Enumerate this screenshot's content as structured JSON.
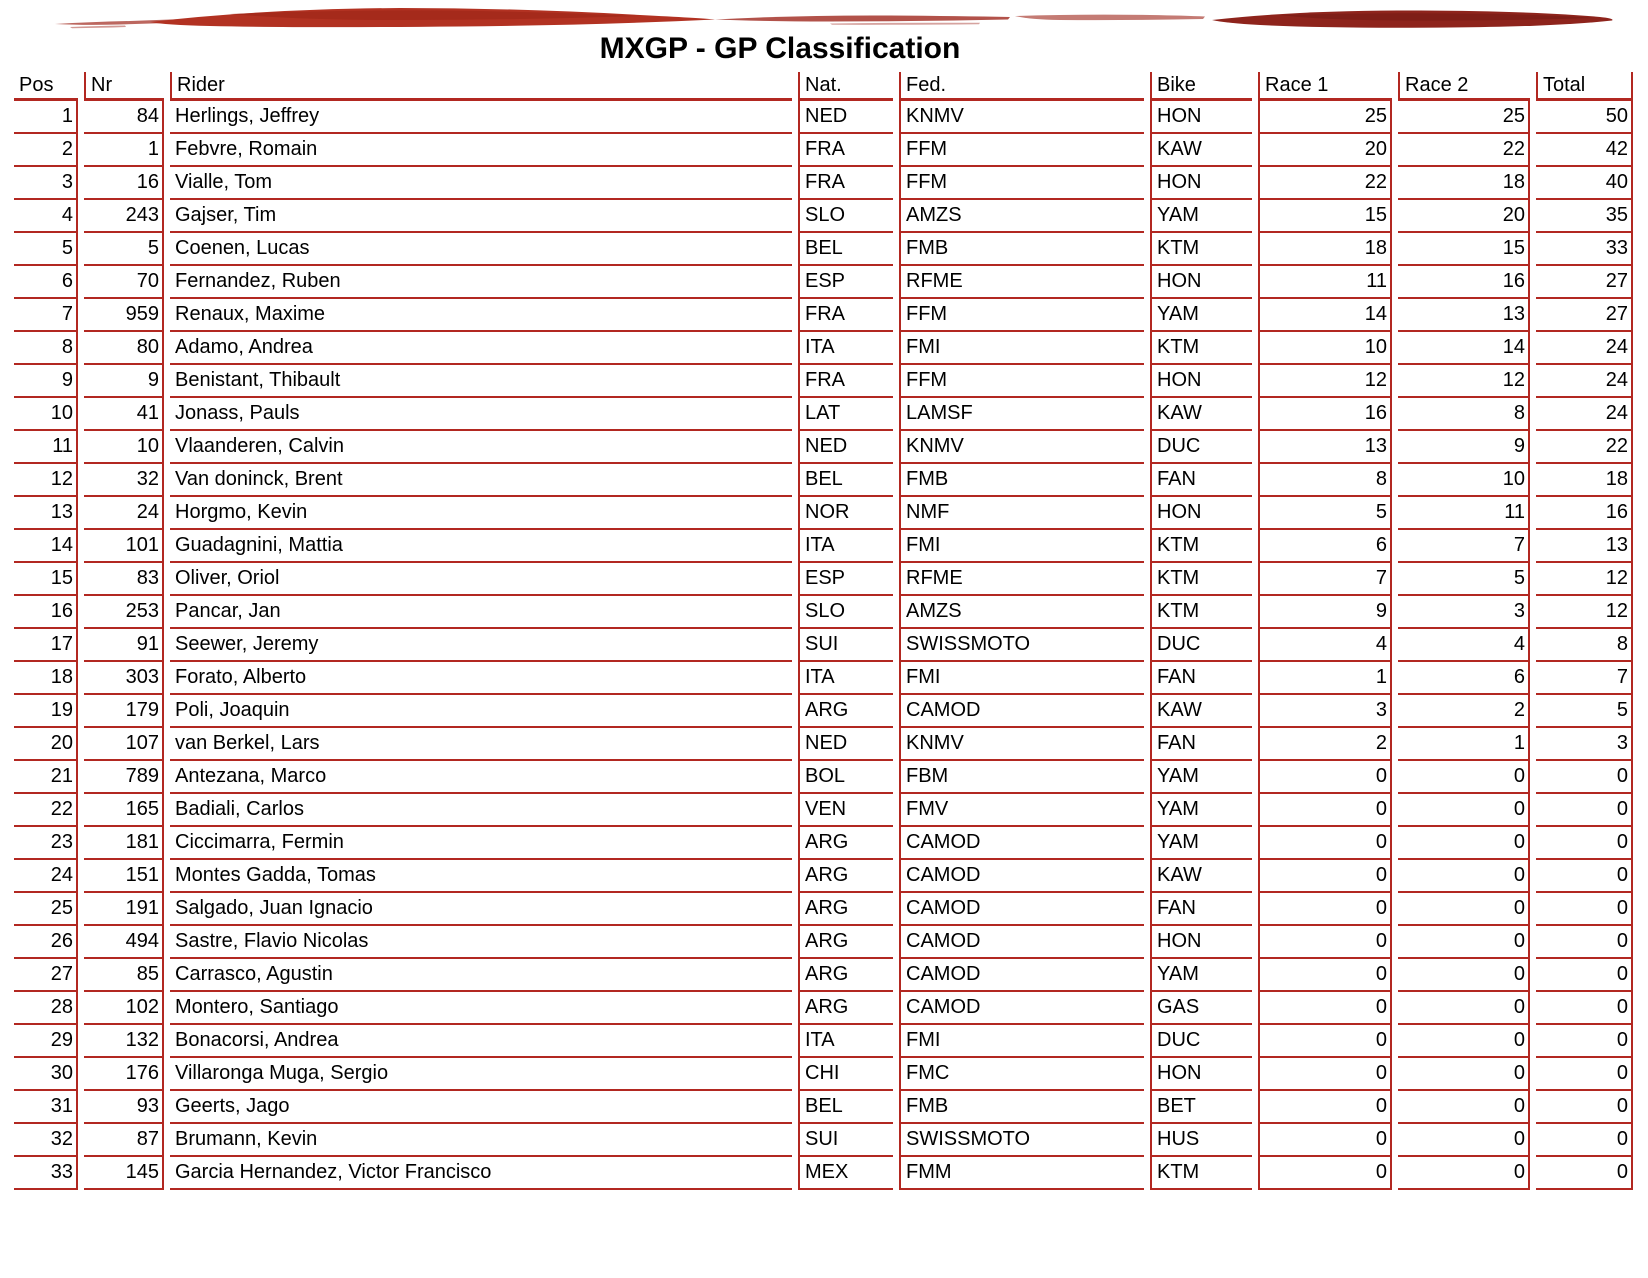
{
  "title": "MXGP - GP Classification",
  "colors": {
    "table_line_red": "#b22821",
    "brush_red_bright": "#b23222",
    "brush_red_mid": "#a5342a",
    "brush_red_dark": "#8e241c",
    "text": "#000000",
    "background": "#ffffff"
  },
  "decoration": {
    "brush_stroke": "red-ink-brush-stroke"
  },
  "table": {
    "columns": [
      {
        "key": "pos",
        "label": "Pos"
      },
      {
        "key": "nr",
        "label": "Nr"
      },
      {
        "key": "rider",
        "label": "Rider"
      },
      {
        "key": "nat",
        "label": "Nat."
      },
      {
        "key": "fed",
        "label": "Fed."
      },
      {
        "key": "bike",
        "label": "Bike"
      },
      {
        "key": "race1",
        "label": "Race 1"
      },
      {
        "key": "race2",
        "label": "Race 2"
      },
      {
        "key": "total",
        "label": "Total"
      }
    ],
    "rows": [
      [
        1,
        84,
        "Herlings, Jeffrey",
        "NED",
        "KNMV",
        "HON",
        25,
        25,
        50
      ],
      [
        2,
        1,
        "Febvre, Romain",
        "FRA",
        "FFM",
        "KAW",
        20,
        22,
        42
      ],
      [
        3,
        16,
        "Vialle, Tom",
        "FRA",
        "FFM",
        "HON",
        22,
        18,
        40
      ],
      [
        4,
        243,
        "Gajser, Tim",
        "SLO",
        "AMZS",
        "YAM",
        15,
        20,
        35
      ],
      [
        5,
        5,
        "Coenen, Lucas",
        "BEL",
        "FMB",
        "KTM",
        18,
        15,
        33
      ],
      [
        6,
        70,
        "Fernandez, Ruben",
        "ESP",
        "RFME",
        "HON",
        11,
        16,
        27
      ],
      [
        7,
        959,
        "Renaux, Maxime",
        "FRA",
        "FFM",
        "YAM",
        14,
        13,
        27
      ],
      [
        8,
        80,
        "Adamo, Andrea",
        "ITA",
        "FMI",
        "KTM",
        10,
        14,
        24
      ],
      [
        9,
        9,
        "Benistant, Thibault",
        "FRA",
        "FFM",
        "HON",
        12,
        12,
        24
      ],
      [
        10,
        41,
        "Jonass, Pauls",
        "LAT",
        "LAMSF",
        "KAW",
        16,
        8,
        24
      ],
      [
        11,
        10,
        "Vlaanderen, Calvin",
        "NED",
        "KNMV",
        "DUC",
        13,
        9,
        22
      ],
      [
        12,
        32,
        "Van doninck, Brent",
        "BEL",
        "FMB",
        "FAN",
        8,
        10,
        18
      ],
      [
        13,
        24,
        "Horgmo, Kevin",
        "NOR",
        "NMF",
        "HON",
        5,
        11,
        16
      ],
      [
        14,
        101,
        "Guadagnini, Mattia",
        "ITA",
        "FMI",
        "KTM",
        6,
        7,
        13
      ],
      [
        15,
        83,
        "Oliver, Oriol",
        "ESP",
        "RFME",
        "KTM",
        7,
        5,
        12
      ],
      [
        16,
        253,
        "Pancar, Jan",
        "SLO",
        "AMZS",
        "KTM",
        9,
        3,
        12
      ],
      [
        17,
        91,
        "Seewer, Jeremy",
        "SUI",
        "SWISSMOTO",
        "DUC",
        4,
        4,
        8
      ],
      [
        18,
        303,
        "Forato, Alberto",
        "ITA",
        "FMI",
        "FAN",
        1,
        6,
        7
      ],
      [
        19,
        179,
        "Poli, Joaquin",
        "ARG",
        "CAMOD",
        "KAW",
        3,
        2,
        5
      ],
      [
        20,
        107,
        "van Berkel, Lars",
        "NED",
        "KNMV",
        "FAN",
        2,
        1,
        3
      ],
      [
        21,
        789,
        "Antezana, Marco",
        "BOL",
        "FBM",
        "YAM",
        0,
        0,
        0
      ],
      [
        22,
        165,
        "Badiali, Carlos",
        "VEN",
        "FMV",
        "YAM",
        0,
        0,
        0
      ],
      [
        23,
        181,
        "Ciccimarra, Fermin",
        "ARG",
        "CAMOD",
        "YAM",
        0,
        0,
        0
      ],
      [
        24,
        151,
        "Montes Gadda, Tomas",
        "ARG",
        "CAMOD",
        "KAW",
        0,
        0,
        0
      ],
      [
        25,
        191,
        "Salgado, Juan Ignacio",
        "ARG",
        "CAMOD",
        "FAN",
        0,
        0,
        0
      ],
      [
        26,
        494,
        "Sastre, Flavio Nicolas",
        "ARG",
        "CAMOD",
        "HON",
        0,
        0,
        0
      ],
      [
        27,
        85,
        "Carrasco, Agustin",
        "ARG",
        "CAMOD",
        "YAM",
        0,
        0,
        0
      ],
      [
        28,
        102,
        "Montero, Santiago",
        "ARG",
        "CAMOD",
        "GAS",
        0,
        0,
        0
      ],
      [
        29,
        132,
        "Bonacorsi, Andrea",
        "ITA",
        "FMI",
        "DUC",
        0,
        0,
        0
      ],
      [
        30,
        176,
        "Villaronga Muga, Sergio",
        "CHI",
        "FMC",
        "HON",
        0,
        0,
        0
      ],
      [
        31,
        93,
        "Geerts, Jago",
        "BEL",
        "FMB",
        "BET",
        0,
        0,
        0
      ],
      [
        32,
        87,
        "Brumann, Kevin",
        "SUI",
        "SWISSMOTO",
        "HUS",
        0,
        0,
        0
      ],
      [
        33,
        145,
        "Garcia Hernandez, Victor Francisco",
        "MEX",
        "FMM",
        "KTM",
        0,
        0,
        0
      ]
    ]
  }
}
